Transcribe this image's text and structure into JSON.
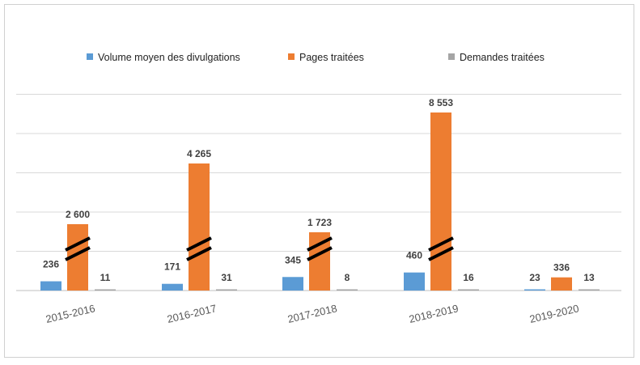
{
  "chart_data": {
    "type": "bar",
    "title": "",
    "xlabel": "",
    "ylabel": "",
    "axis_break": true,
    "grid": true,
    "legend_position": "top",
    "categories": [
      "2015-2016",
      "2016-2017",
      "2017-2018",
      "2018-2019",
      "2019-2020"
    ],
    "series": [
      {
        "name": "Volume moyen des divulgations",
        "color": "#5b9bd5",
        "values": [
          236,
          171,
          345,
          460,
          23
        ],
        "labels": [
          "236",
          "171",
          "345",
          "460",
          "23"
        ]
      },
      {
        "name": "Pages traitées",
        "color": "#ed7d31",
        "values": [
          2600,
          4265,
          1723,
          8553,
          336
        ],
        "labels": [
          "2 600",
          "4 265",
          "1 723",
          "8 553",
          "336"
        ]
      },
      {
        "name": "Demandes traitées",
        "color": "#a5a5a5",
        "values": [
          11,
          31,
          8,
          16,
          13
        ],
        "labels": [
          "11",
          "31",
          "8",
          "16",
          "13"
        ]
      }
    ]
  }
}
